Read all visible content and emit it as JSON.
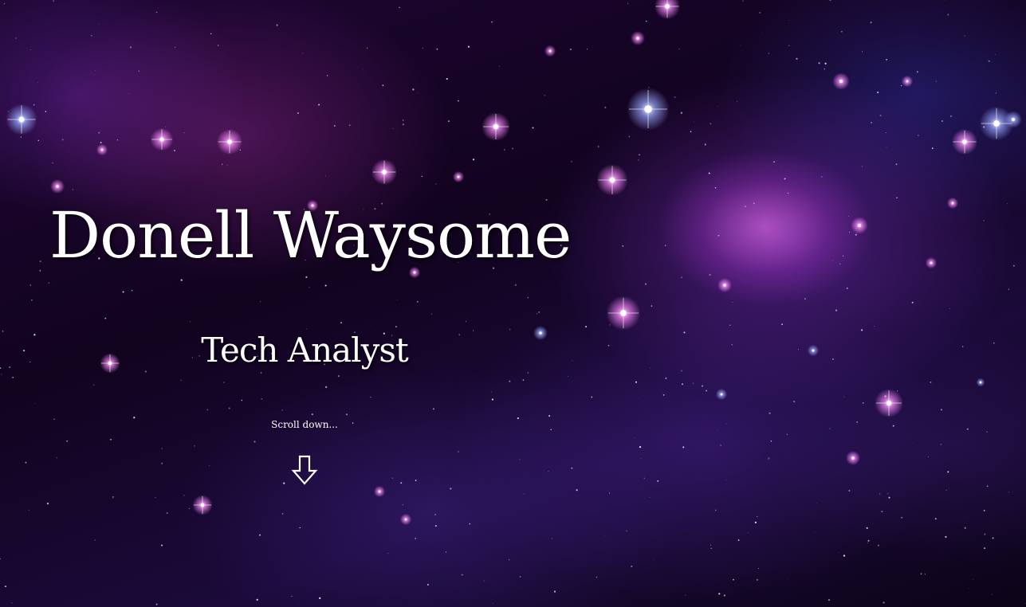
{
  "hero": {
    "name": "Donell Waysome",
    "role": "Tech Analyst",
    "scroll_hint": "Scroll down...",
    "scroll_icon": "down-arrow-icon"
  },
  "colors": {
    "text": "#ffffff",
    "background_dark": "#12031f",
    "nebula_pink": "#ff78ff",
    "nebula_purple": "#7832be"
  }
}
